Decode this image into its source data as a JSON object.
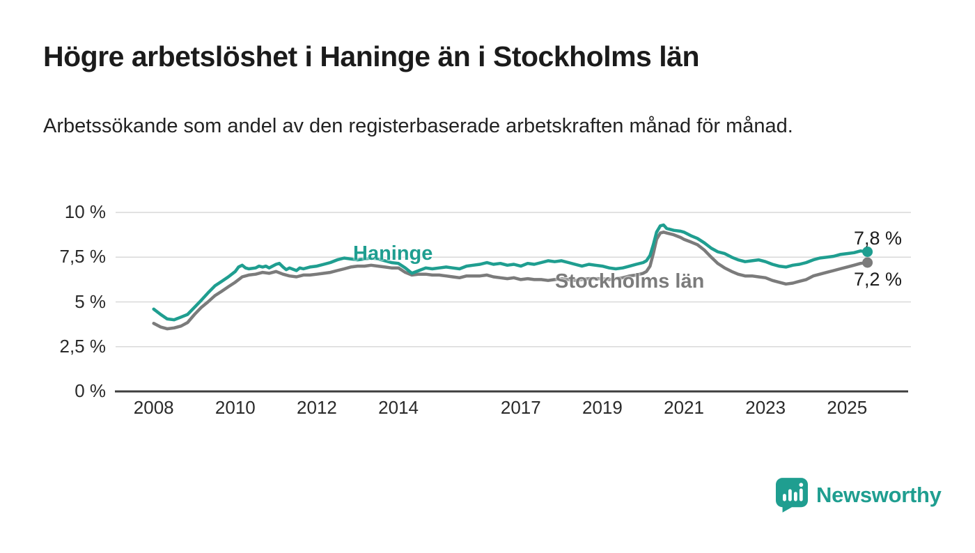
{
  "branding": {
    "name": "Newsworthy",
    "color": "#1f9e90"
  },
  "chart_data": {
    "type": "line",
    "title": "Högre arbetslöshet i Haninge än i Stockholms län",
    "subtitle": "Arbetssökande som andel av den registerbaserade arbetskraften månad för månad.",
    "grid": true,
    "grid_color": "#d9d9d9",
    "axis_color": "#3f3f3f",
    "legend": "inline-labels",
    "x_axis": {
      "range": [
        2007.1,
        2026.6
      ],
      "ticks": [
        {
          "value": 2008,
          "label": "2008"
        },
        {
          "value": 2010,
          "label": "2010"
        },
        {
          "value": 2012,
          "label": "2012"
        },
        {
          "value": 2014,
          "label": "2014"
        },
        {
          "value": 2017,
          "label": "2017"
        },
        {
          "value": 2019,
          "label": "2019"
        },
        {
          "value": 2021,
          "label": "2021"
        },
        {
          "value": 2023,
          "label": "2023"
        },
        {
          "value": 2025,
          "label": "2025"
        }
      ]
    },
    "y_axis": {
      "range": [
        0,
        10
      ],
      "unit": "%",
      "ticks": [
        {
          "value": 0,
          "label": "0 %"
        },
        {
          "value": 2.5,
          "label": "2,5 %"
        },
        {
          "value": 5,
          "label": "5 %"
        },
        {
          "value": 7.5,
          "label": "7,5 %"
        },
        {
          "value": 10,
          "label": "10 %"
        }
      ]
    },
    "series": [
      {
        "name": "Haninge",
        "color": "#1f9e90",
        "end_label": "7,8 %",
        "end_value": 7.8,
        "points": [
          [
            2008.0,
            4.6
          ],
          [
            2008.17,
            4.3
          ],
          [
            2008.33,
            4.05
          ],
          [
            2008.5,
            4.0
          ],
          [
            2008.67,
            4.15
          ],
          [
            2008.83,
            4.3
          ],
          [
            2009.0,
            4.7
          ],
          [
            2009.17,
            5.1
          ],
          [
            2009.33,
            5.5
          ],
          [
            2009.5,
            5.9
          ],
          [
            2009.67,
            6.15
          ],
          [
            2009.83,
            6.4
          ],
          [
            2010.0,
            6.7
          ],
          [
            2010.08,
            6.95
          ],
          [
            2010.17,
            7.05
          ],
          [
            2010.25,
            6.9
          ],
          [
            2010.33,
            6.85
          ],
          [
            2010.5,
            6.9
          ],
          [
            2010.58,
            7.0
          ],
          [
            2010.67,
            6.95
          ],
          [
            2010.75,
            7.0
          ],
          [
            2010.83,
            6.9
          ],
          [
            2011.0,
            7.1
          ],
          [
            2011.08,
            7.15
          ],
          [
            2011.17,
            6.95
          ],
          [
            2011.25,
            6.8
          ],
          [
            2011.33,
            6.9
          ],
          [
            2011.5,
            6.75
          ],
          [
            2011.58,
            6.9
          ],
          [
            2011.67,
            6.85
          ],
          [
            2011.83,
            6.95
          ],
          [
            2012.0,
            7.0
          ],
          [
            2012.17,
            7.1
          ],
          [
            2012.33,
            7.2
          ],
          [
            2012.5,
            7.35
          ],
          [
            2012.67,
            7.45
          ],
          [
            2012.83,
            7.4
          ],
          [
            2013.0,
            7.35
          ],
          [
            2013.17,
            7.4
          ],
          [
            2013.33,
            7.45
          ],
          [
            2013.5,
            7.4
          ],
          [
            2013.67,
            7.3
          ],
          [
            2013.83,
            7.2
          ],
          [
            2014.0,
            7.15
          ],
          [
            2014.17,
            6.9
          ],
          [
            2014.33,
            6.6
          ],
          [
            2014.5,
            6.75
          ],
          [
            2014.67,
            6.9
          ],
          [
            2014.83,
            6.85
          ],
          [
            2015.0,
            6.9
          ],
          [
            2015.17,
            6.95
          ],
          [
            2015.33,
            6.9
          ],
          [
            2015.5,
            6.85
          ],
          [
            2015.67,
            7.0
          ],
          [
            2015.83,
            7.05
          ],
          [
            2016.0,
            7.1
          ],
          [
            2016.17,
            7.2
          ],
          [
            2016.33,
            7.1
          ],
          [
            2016.5,
            7.15
          ],
          [
            2016.67,
            7.05
          ],
          [
            2016.83,
            7.1
          ],
          [
            2017.0,
            7.0
          ],
          [
            2017.17,
            7.15
          ],
          [
            2017.33,
            7.1
          ],
          [
            2017.5,
            7.2
          ],
          [
            2017.67,
            7.3
          ],
          [
            2017.83,
            7.25
          ],
          [
            2018.0,
            7.3
          ],
          [
            2018.17,
            7.2
          ],
          [
            2018.33,
            7.1
          ],
          [
            2018.5,
            7.0
          ],
          [
            2018.67,
            7.1
          ],
          [
            2018.83,
            7.05
          ],
          [
            2019.0,
            7.0
          ],
          [
            2019.17,
            6.9
          ],
          [
            2019.33,
            6.85
          ],
          [
            2019.5,
            6.9
          ],
          [
            2019.67,
            7.0
          ],
          [
            2019.83,
            7.1
          ],
          [
            2020.0,
            7.2
          ],
          [
            2020.08,
            7.3
          ],
          [
            2020.17,
            7.6
          ],
          [
            2020.25,
            8.2
          ],
          [
            2020.33,
            8.9
          ],
          [
            2020.42,
            9.25
          ],
          [
            2020.5,
            9.3
          ],
          [
            2020.58,
            9.1
          ],
          [
            2020.75,
            9.0
          ],
          [
            2020.92,
            8.95
          ],
          [
            2021.0,
            8.9
          ],
          [
            2021.17,
            8.7
          ],
          [
            2021.33,
            8.55
          ],
          [
            2021.5,
            8.3
          ],
          [
            2021.67,
            8.0
          ],
          [
            2021.83,
            7.8
          ],
          [
            2022.0,
            7.7
          ],
          [
            2022.17,
            7.5
          ],
          [
            2022.33,
            7.35
          ],
          [
            2022.5,
            7.25
          ],
          [
            2022.67,
            7.3
          ],
          [
            2022.83,
            7.35
          ],
          [
            2023.0,
            7.25
          ],
          [
            2023.17,
            7.1
          ],
          [
            2023.33,
            7.0
          ],
          [
            2023.5,
            6.95
          ],
          [
            2023.67,
            7.05
          ],
          [
            2023.83,
            7.1
          ],
          [
            2024.0,
            7.2
          ],
          [
            2024.17,
            7.35
          ],
          [
            2024.33,
            7.45
          ],
          [
            2024.5,
            7.5
          ],
          [
            2024.67,
            7.55
          ],
          [
            2024.83,
            7.65
          ],
          [
            2025.0,
            7.7
          ],
          [
            2025.17,
            7.75
          ],
          [
            2025.33,
            7.85
          ],
          [
            2025.5,
            7.8
          ]
        ]
      },
      {
        "name": "Stockholms län",
        "color": "#7b7b7b",
        "end_label": "7,2 %",
        "end_value": 7.2,
        "points": [
          [
            2008.0,
            3.8
          ],
          [
            2008.17,
            3.6
          ],
          [
            2008.33,
            3.5
          ],
          [
            2008.5,
            3.55
          ],
          [
            2008.67,
            3.65
          ],
          [
            2008.83,
            3.85
          ],
          [
            2009.0,
            4.3
          ],
          [
            2009.17,
            4.7
          ],
          [
            2009.33,
            5.0
          ],
          [
            2009.5,
            5.35
          ],
          [
            2009.67,
            5.6
          ],
          [
            2009.83,
            5.85
          ],
          [
            2010.0,
            6.1
          ],
          [
            2010.17,
            6.4
          ],
          [
            2010.33,
            6.5
          ],
          [
            2010.5,
            6.55
          ],
          [
            2010.67,
            6.65
          ],
          [
            2010.83,
            6.6
          ],
          [
            2011.0,
            6.7
          ],
          [
            2011.17,
            6.55
          ],
          [
            2011.33,
            6.45
          ],
          [
            2011.5,
            6.4
          ],
          [
            2011.67,
            6.5
          ],
          [
            2011.83,
            6.5
          ],
          [
            2012.0,
            6.55
          ],
          [
            2012.17,
            6.6
          ],
          [
            2012.33,
            6.65
          ],
          [
            2012.5,
            6.75
          ],
          [
            2012.67,
            6.85
          ],
          [
            2012.83,
            6.95
          ],
          [
            2013.0,
            7.0
          ],
          [
            2013.17,
            7.0
          ],
          [
            2013.33,
            7.05
          ],
          [
            2013.5,
            7.0
          ],
          [
            2013.67,
            6.95
          ],
          [
            2013.83,
            6.9
          ],
          [
            2014.0,
            6.9
          ],
          [
            2014.17,
            6.65
          ],
          [
            2014.33,
            6.5
          ],
          [
            2014.5,
            6.55
          ],
          [
            2014.67,
            6.55
          ],
          [
            2014.83,
            6.5
          ],
          [
            2015.0,
            6.5
          ],
          [
            2015.17,
            6.45
          ],
          [
            2015.33,
            6.4
          ],
          [
            2015.5,
            6.35
          ],
          [
            2015.67,
            6.45
          ],
          [
            2015.83,
            6.45
          ],
          [
            2016.0,
            6.45
          ],
          [
            2016.17,
            6.5
          ],
          [
            2016.33,
            6.4
          ],
          [
            2016.5,
            6.35
          ],
          [
            2016.67,
            6.3
          ],
          [
            2016.83,
            6.35
          ],
          [
            2017.0,
            6.25
          ],
          [
            2017.17,
            6.3
          ],
          [
            2017.33,
            6.25
          ],
          [
            2017.5,
            6.25
          ],
          [
            2017.67,
            6.2
          ],
          [
            2017.83,
            6.25
          ],
          [
            2018.0,
            6.3
          ],
          [
            2018.17,
            6.25
          ],
          [
            2018.33,
            6.2
          ],
          [
            2018.5,
            6.25
          ],
          [
            2018.67,
            6.3
          ],
          [
            2018.83,
            6.3
          ],
          [
            2019.0,
            6.3
          ],
          [
            2019.17,
            6.25
          ],
          [
            2019.33,
            6.3
          ],
          [
            2019.5,
            6.35
          ],
          [
            2019.67,
            6.45
          ],
          [
            2019.83,
            6.5
          ],
          [
            2020.0,
            6.6
          ],
          [
            2020.08,
            6.7
          ],
          [
            2020.17,
            7.0
          ],
          [
            2020.25,
            7.7
          ],
          [
            2020.33,
            8.5
          ],
          [
            2020.42,
            8.85
          ],
          [
            2020.5,
            8.9
          ],
          [
            2020.58,
            8.85
          ],
          [
            2020.75,
            8.75
          ],
          [
            2020.92,
            8.6
          ],
          [
            2021.0,
            8.5
          ],
          [
            2021.17,
            8.35
          ],
          [
            2021.33,
            8.2
          ],
          [
            2021.5,
            7.9
          ],
          [
            2021.67,
            7.5
          ],
          [
            2021.83,
            7.15
          ],
          [
            2022.0,
            6.9
          ],
          [
            2022.17,
            6.7
          ],
          [
            2022.33,
            6.55
          ],
          [
            2022.5,
            6.45
          ],
          [
            2022.67,
            6.45
          ],
          [
            2022.83,
            6.4
          ],
          [
            2023.0,
            6.35
          ],
          [
            2023.17,
            6.2
          ],
          [
            2023.33,
            6.1
          ],
          [
            2023.5,
            6.0
          ],
          [
            2023.67,
            6.05
          ],
          [
            2023.83,
            6.15
          ],
          [
            2024.0,
            6.25
          ],
          [
            2024.17,
            6.45
          ],
          [
            2024.33,
            6.55
          ],
          [
            2024.5,
            6.65
          ],
          [
            2024.67,
            6.75
          ],
          [
            2024.83,
            6.85
          ],
          [
            2025.0,
            6.95
          ],
          [
            2025.17,
            7.05
          ],
          [
            2025.33,
            7.15
          ],
          [
            2025.5,
            7.2
          ]
        ]
      }
    ]
  }
}
